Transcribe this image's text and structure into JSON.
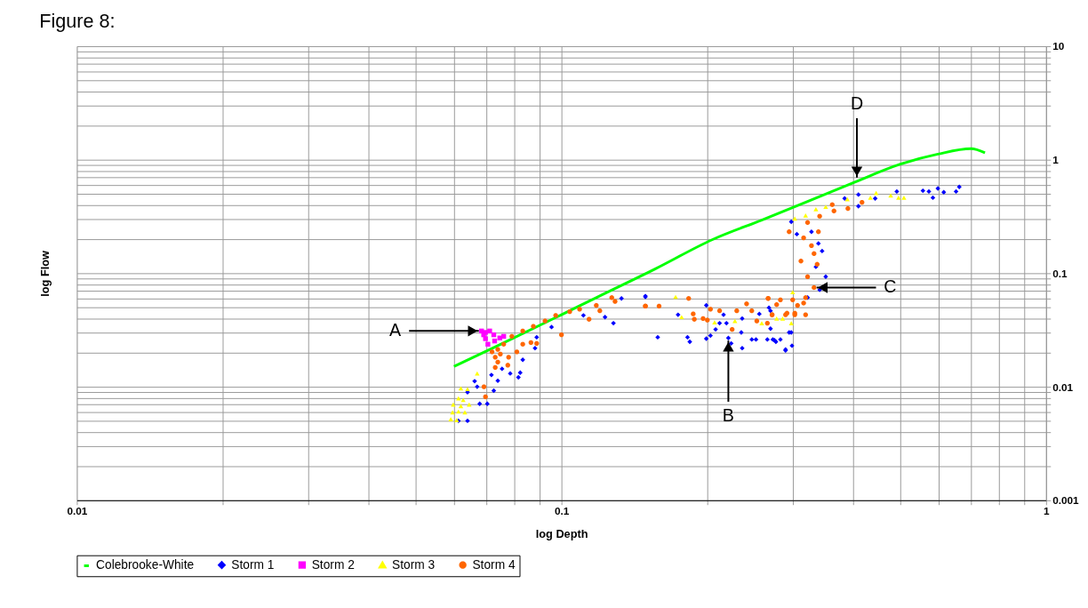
{
  "chart_data": {
    "type": "scatter",
    "title": "Figure 8:",
    "xlabel": "log Depth",
    "ylabel": "log Flow",
    "log": "xy",
    "grid": true,
    "legend": "bottom",
    "xlim": [
      0.01,
      1
    ],
    "ylim": [
      0.001,
      10
    ],
    "xticks": [
      0.01,
      {
        "value": 0.02,
        "label": null
      },
      {
        "value": 0.03,
        "label": null
      },
      {
        "value": 0.04,
        "label": null
      },
      {
        "value": 0.05,
        "label": null
      },
      {
        "value": 0.06,
        "label": null
      },
      {
        "value": 0.07,
        "label": null
      },
      {
        "value": 0.08,
        "label": null
      },
      {
        "value": 0.09,
        "label": null
      },
      0.1,
      {
        "value": 0.2,
        "label": null
      },
      {
        "value": 0.3,
        "label": null
      },
      {
        "value": 0.4,
        "label": null
      },
      {
        "value": 0.5,
        "label": null
      },
      {
        "value": 0.6,
        "label": null
      },
      {
        "value": 0.7,
        "label": null
      },
      {
        "value": 0.8,
        "label": null
      },
      {
        "value": 0.9,
        "label": null
      },
      1
    ],
    "yticks": [
      0.001,
      {
        "value": 0.002,
        "label": null
      },
      {
        "value": 0.003,
        "label": null
      },
      {
        "value": 0.004,
        "label": null
      },
      {
        "value": 0.005,
        "label": null
      },
      {
        "value": 0.006,
        "label": null
      },
      {
        "value": 0.007,
        "label": null
      },
      {
        "value": 0.008,
        "label": null
      },
      {
        "value": 0.009,
        "label": null
      },
      0.01,
      {
        "value": 0.02,
        "label": null
      },
      {
        "value": 0.03,
        "label": null
      },
      {
        "value": 0.04,
        "label": null
      },
      {
        "value": 0.05,
        "label": null
      },
      {
        "value": 0.06,
        "label": null
      },
      {
        "value": 0.07,
        "label": null
      },
      {
        "value": 0.08,
        "label": null
      },
      {
        "value": 0.09,
        "label": null
      },
      0.1,
      {
        "value": 0.2,
        "label": null
      },
      {
        "value": 0.3,
        "label": null
      },
      {
        "value": 0.4,
        "label": null
      },
      {
        "value": 0.5,
        "label": null
      },
      {
        "value": 0.6,
        "label": null
      },
      {
        "value": 0.7,
        "label": null
      },
      {
        "value": 0.8,
        "label": null
      },
      {
        "value": 0.9,
        "label": null
      },
      1,
      {
        "value": 2,
        "label": null
      },
      {
        "value": 3,
        "label": null
      },
      {
        "value": 4,
        "label": null
      },
      {
        "value": 5,
        "label": null
      },
      {
        "value": 6,
        "label": null
      },
      {
        "value": 7,
        "label": null
      },
      {
        "value": 8,
        "label": null
      },
      {
        "value": 9,
        "label": null
      },
      10
    ],
    "series": [
      {
        "name": "Colebrooke-White",
        "type": "line",
        "marker": "none",
        "color": "#00ff00",
        "x": [
          0.06,
          0.0739,
          0.1,
          0.118,
          0.156,
          0.205,
          0.259,
          0.399,
          0.499,
          0.598,
          0.7,
          0.748
        ],
        "values": [
          0.0151,
          0.023,
          0.0431,
          0.061,
          0.109,
          0.198,
          0.294,
          0.624,
          0.91,
          1.12,
          1.25,
          1.15
        ]
      },
      {
        "name": "Storm 1",
        "marker": "diamond",
        "color": "#0000ff",
        "x": [
          0.0613,
          0.064,
          0.064,
          0.0662,
          0.067,
          0.0678,
          0.0703,
          0.0717,
          0.0739,
          0.0725,
          0.0815,
          0.0822,
          0.0832,
          0.0882,
          0.0889,
          0.0954,
          0.123,
          0.128,
          0.133,
          0.149,
          0.111,
          0.0754,
          0.0784,
          0.149,
          0.158,
          0.174,
          0.182,
          0.184,
          0.199,
          0.199,
          0.203,
          0.208,
          0.212,
          0.216,
          0.219,
          0.221,
          0.224,
          0.235,
          0.236,
          0.236,
          0.247,
          0.252,
          0.256,
          0.266,
          0.273,
          0.277,
          0.283,
          0.29,
          0.299,
          0.295,
          0.27,
          0.268,
          0.27,
          0.275,
          0.29,
          0.298,
          0.328,
          0.306,
          0.298,
          0.351,
          0.345,
          0.41,
          0.41,
          0.444,
          0.492,
          0.557,
          0.573,
          0.584,
          0.598,
          0.615,
          0.652,
          0.662,
          0.384,
          0.335,
          0.341,
          0.322,
          0.339
        ],
        "values": [
          0.00501,
          0.00501,
          0.00896,
          0.0112,
          0.01,
          0.00708,
          0.00708,
          0.0127,
          0.0113,
          0.00924,
          0.0121,
          0.0133,
          0.0173,
          0.0219,
          0.0273,
          0.0336,
          0.0411,
          0.0363,
          0.06,
          0.0619,
          0.0425,
          0.0144,
          0.0131,
          0.0629,
          0.0273,
          0.0431,
          0.0273,
          0.0249,
          0.0521,
          0.0265,
          0.0282,
          0.032,
          0.0363,
          0.0431,
          0.0363,
          0.0269,
          0.0241,
          0.0301,
          0.0219,
          0.0399,
          0.0261,
          0.0261,
          0.0438,
          0.0261,
          0.0261,
          0.0249,
          0.0261,
          0.0209,
          0.023,
          0.0301,
          0.0467,
          0.0497,
          0.0325,
          0.0257,
          0.0213,
          0.0301,
          0.232,
          0.221,
          0.284,
          0.0932,
          0.157,
          0.389,
          0.493,
          0.456,
          0.525,
          0.533,
          0.525,
          0.463,
          0.559,
          0.517,
          0.525,
          0.577,
          0.456,
          0.114,
          0.0714,
          0.061,
          0.183
        ]
      },
      {
        "name": "Storm 2",
        "marker": "square",
        "color": "#ff00ff",
        "x": [
          0.0684,
          0.0697,
          0.0711,
          0.0725,
          0.0746,
          0.0697,
          0.0705,
          0.0728,
          0.076,
          0.0691
        ],
        "values": [
          0.031,
          0.0301,
          0.031,
          0.0287,
          0.0269,
          0.0265,
          0.0237,
          0.0253,
          0.0278,
          0.0287
        ]
      },
      {
        "name": "Storm 3",
        "marker": "triangle",
        "color": "#ffff00",
        "x": [
          0.062,
          0.064,
          0.0613,
          0.0627,
          0.0598,
          0.062,
          0.0645,
          0.0596,
          0.0613,
          0.0632,
          0.0591,
          0.0608,
          0.067,
          0.172,
          0.177,
          0.207,
          0.228,
          0.259,
          0.298,
          0.286,
          0.3,
          0.278,
          0.303,
          0.319,
          0.335,
          0.351,
          0.389,
          0.434,
          0.446,
          0.478,
          0.496,
          0.509
        ],
        "values": [
          0.00969,
          0.00954,
          0.0079,
          0.00765,
          0.00697,
          0.00675,
          0.00697,
          0.00595,
          0.00605,
          0.00595,
          0.00517,
          0.00509,
          0.0131,
          0.0619,
          0.0411,
          0.0369,
          0.038,
          0.0363,
          0.0363,
          0.0399,
          0.0681,
          0.0399,
          0.303,
          0.323,
          0.366,
          0.384,
          0.449,
          0.463,
          0.509,
          0.485,
          0.463,
          0.463
        ]
      },
      {
        "name": "Storm 4",
        "marker": "circle",
        "color": "#ff6600",
        "x": [
          0.0692,
          0.0697,
          0.073,
          0.0739,
          0.076,
          0.079,
          0.0832,
          0.0875,
          0.0925,
          0.0973,
          0.1,
          0.104,
          0.109,
          0.114,
          0.118,
          0.127,
          0.149,
          0.0775,
          0.0739,
          0.0865,
          0.0809,
          0.0778,
          0.0719,
          0.0889,
          0.073,
          0.0748,
          0.0832,
          0.12,
          0.129,
          0.149,
          0.159,
          0.183,
          0.187,
          0.188,
          0.196,
          0.2,
          0.203,
          0.212,
          0.225,
          0.23,
          0.241,
          0.247,
          0.253,
          0.266,
          0.267,
          0.272,
          0.278,
          0.29,
          0.303,
          0.319,
          0.316,
          0.3,
          0.267,
          0.283,
          0.272,
          0.295,
          0.322,
          0.341,
          0.362,
          0.365,
          0.39,
          0.417,
          0.316,
          0.339,
          0.328,
          0.332,
          0.312,
          0.337,
          0.322,
          0.332,
          0.319,
          0.307,
          0.292,
          0.303
        ],
        "values": [
          0.01,
          0.00815,
          0.0182,
          0.0213,
          0.0237,
          0.0278,
          0.031,
          0.0341,
          0.038,
          0.0425,
          0.0287,
          0.0459,
          0.0482,
          0.0393,
          0.0521,
          0.061,
          0.0513,
          0.0155,
          0.0165,
          0.0245,
          0.0203,
          0.0182,
          0.0203,
          0.0241,
          0.0148,
          0.0194,
          0.0237,
          0.0467,
          0.0564,
          0.0513,
          0.0513,
          0.06,
          0.0438,
          0.0393,
          0.0399,
          0.0387,
          0.0482,
          0.0467,
          0.032,
          0.0467,
          0.0538,
          0.0467,
          0.038,
          0.0363,
          0.06,
          0.0431,
          0.0529,
          0.0431,
          0.0431,
          0.0431,
          0.0546,
          0.0582,
          0.06,
          0.0582,
          0.0431,
          0.232,
          0.28,
          0.318,
          0.402,
          0.354,
          0.372,
          0.421,
          0.205,
          0.232,
          0.175,
          0.149,
          0.128,
          0.12,
          0.0932,
          0.0748,
          0.061,
          0.0521,
          0.0445,
          0.0445
        ]
      }
    ],
    "annotations": [
      {
        "text": "A",
        "x": 0.0684,
        "y": 0.031
      },
      {
        "text": "B",
        "x": 0.221,
        "y": 0.0269
      },
      {
        "text": "C",
        "x": 0.332,
        "y": 0.0748
      },
      {
        "text": "D",
        "x": 0.407,
        "y": 0.696
      }
    ]
  }
}
